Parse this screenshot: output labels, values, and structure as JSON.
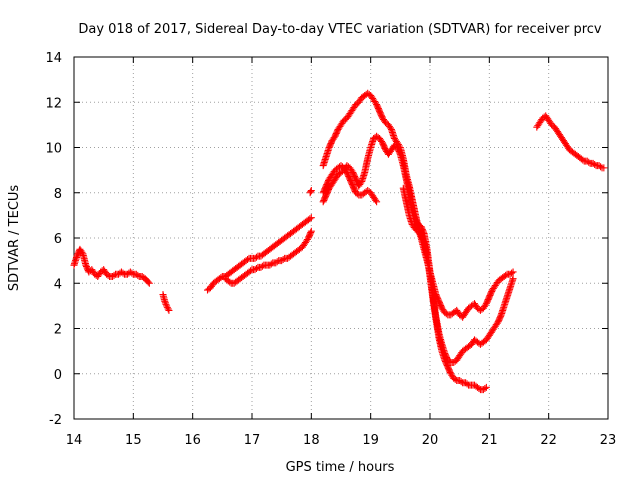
{
  "chart_data": {
    "type": "scatter",
    "title": "Day 018 of 2017, Sidereal Day-to-day VTEC variation (SDTVAR) for receiver prcv",
    "xlabel": "GPS time / hours",
    "ylabel": "SDTVAR / TECUs",
    "xlim": [
      14,
      23
    ],
    "ylim": [
      -2,
      14
    ],
    "xticks": [
      "14",
      "15",
      "16",
      "17",
      "18",
      "19",
      "20",
      "21",
      "22",
      "23"
    ],
    "yticks": [
      "-2",
      "0",
      "2",
      "4",
      "6",
      "8",
      "10",
      "12",
      "14"
    ],
    "grid": true,
    "marker": "+",
    "color": "#ff0000",
    "series": [
      {
        "name": "segment-a",
        "x": [
          14.0,
          14.05,
          14.1,
          14.15,
          14.2,
          14.25,
          14.3,
          14.35,
          14.4,
          14.45,
          14.5,
          14.55,
          14.6,
          14.65,
          14.7,
          14.75,
          14.8,
          14.85,
          14.9,
          14.95,
          15.0,
          15.05,
          15.1,
          15.15,
          15.2,
          15.27
        ],
        "y": [
          4.8,
          5.2,
          5.5,
          5.3,
          4.8,
          4.5,
          4.6,
          4.4,
          4.3,
          4.5,
          4.6,
          4.4,
          4.3,
          4.3,
          4.4,
          4.4,
          4.5,
          4.4,
          4.4,
          4.5,
          4.4,
          4.4,
          4.3,
          4.3,
          4.2,
          4.0
        ]
      },
      {
        "name": "segment-b",
        "x": [
          15.5,
          15.53,
          15.56,
          15.6
        ],
        "y": [
          3.5,
          3.2,
          3.0,
          2.8
        ]
      },
      {
        "name": "segment-c",
        "x": [
          16.25,
          16.3,
          16.35,
          16.4,
          16.45,
          16.5,
          16.55,
          16.6,
          16.65,
          16.7,
          16.75,
          16.8,
          16.85,
          16.9,
          16.95,
          17.0,
          17.05,
          17.1,
          17.15,
          17.2,
          17.25,
          17.3,
          17.35,
          17.4,
          17.45,
          17.5,
          17.55,
          17.6,
          17.65,
          17.7,
          17.75,
          17.8,
          17.85,
          17.9,
          17.95,
          18.0
        ],
        "y": [
          3.7,
          3.8,
          4.0,
          4.1,
          4.2,
          4.3,
          4.3,
          4.4,
          4.5,
          4.6,
          4.7,
          4.8,
          4.9,
          5.0,
          5.1,
          5.1,
          5.1,
          5.2,
          5.2,
          5.3,
          5.4,
          5.5,
          5.6,
          5.7,
          5.8,
          5.9,
          6.0,
          6.1,
          6.2,
          6.3,
          6.4,
          6.5,
          6.6,
          6.7,
          6.8,
          6.9
        ]
      },
      {
        "name": "segment-d",
        "x": [
          16.55,
          16.6,
          16.65,
          16.7,
          16.75,
          16.8,
          16.85,
          16.9,
          16.95,
          17.0,
          17.05,
          17.1,
          17.15,
          17.2,
          17.25,
          17.3,
          17.35,
          17.4,
          17.45,
          17.5,
          17.55,
          17.6,
          17.65,
          17.7,
          17.75,
          17.8,
          17.85,
          17.9,
          17.95,
          18.0
        ],
        "y": [
          4.2,
          4.1,
          4.0,
          4.0,
          4.1,
          4.2,
          4.3,
          4.4,
          4.5,
          4.6,
          4.6,
          4.7,
          4.7,
          4.8,
          4.8,
          4.8,
          4.9,
          4.9,
          5.0,
          5.0,
          5.1,
          5.1,
          5.2,
          5.3,
          5.4,
          5.5,
          5.6,
          5.8,
          6.0,
          6.3
        ]
      },
      {
        "name": "segment-e",
        "x": [
          17.98,
          18.0
        ],
        "y": [
          8.0,
          8.1
        ]
      },
      {
        "name": "segment-f",
        "x": [
          18.2,
          18.25,
          18.3,
          18.35,
          18.4,
          18.45,
          18.5,
          18.55,
          18.6,
          18.65,
          18.7,
          18.75,
          18.8,
          18.85,
          18.9,
          18.95,
          19.0,
          19.05,
          19.1,
          19.15,
          19.2,
          19.25,
          19.3,
          19.35,
          19.4,
          19.45,
          19.5,
          19.55,
          19.6,
          19.65,
          19.7,
          19.75,
          19.8,
          19.85,
          19.9,
          19.95,
          20.0,
          20.05,
          20.1,
          20.15,
          20.2,
          20.25,
          20.3,
          20.35,
          20.4,
          20.45,
          20.5,
          20.55,
          20.6,
          20.65,
          20.7,
          20.75,
          20.8,
          20.85,
          20.9,
          20.95,
          21.0,
          21.05,
          21.1,
          21.15,
          21.2,
          21.25,
          21.3,
          21.35,
          21.4
        ],
        "y": [
          9.2,
          9.6,
          10.0,
          10.3,
          10.5,
          10.8,
          11.0,
          11.2,
          11.3,
          11.5,
          11.7,
          11.9,
          12.0,
          12.2,
          12.3,
          12.4,
          12.3,
          12.1,
          11.9,
          11.6,
          11.3,
          11.1,
          11.0,
          10.8,
          10.4,
          10.2,
          10.0,
          9.5,
          8.8,
          8.3,
          7.7,
          7.1,
          6.5,
          6.0,
          5.5,
          5.0,
          4.5,
          4.0,
          3.5,
          3.2,
          2.9,
          2.7,
          2.6,
          2.6,
          2.7,
          2.8,
          2.6,
          2.5,
          2.7,
          2.9,
          3.0,
          3.1,
          2.9,
          2.8,
          2.9,
          3.1,
          3.4,
          3.7,
          3.9,
          4.1,
          4.2,
          4.3,
          4.4,
          4.4,
          4.5
        ]
      },
      {
        "name": "segment-g",
        "x": [
          18.2,
          18.25,
          18.3,
          18.35,
          18.4,
          18.45,
          18.5,
          18.55,
          18.6,
          18.65,
          18.7,
          18.75,
          18.8,
          18.85,
          18.9,
          18.95,
          19.0,
          19.05,
          19.1,
          19.15,
          19.2,
          19.25,
          19.3,
          19.35,
          19.4,
          19.45,
          19.5,
          19.55,
          19.6,
          19.65,
          19.7,
          19.75,
          19.8,
          19.85,
          19.9,
          19.95,
          20.0,
          20.05,
          20.1,
          20.15,
          20.2,
          20.25,
          20.3,
          20.35,
          20.4,
          20.45,
          20.5,
          20.55,
          20.6,
          20.65,
          20.7,
          20.75,
          20.8,
          20.85,
          20.9,
          20.95,
          21.0,
          21.05,
          21.1,
          21.15,
          21.2,
          21.25,
          21.3,
          21.35,
          21.4
        ],
        "y": [
          7.6,
          7.9,
          8.2,
          8.4,
          8.6,
          8.8,
          8.9,
          9.0,
          9.2,
          9.1,
          8.9,
          8.6,
          8.3,
          8.5,
          8.9,
          9.5,
          10.0,
          10.4,
          10.5,
          10.4,
          10.2,
          9.9,
          9.7,
          9.9,
          10.1,
          10.0,
          9.7,
          9.2,
          8.6,
          8.0,
          7.2,
          6.8,
          6.6,
          6.5,
          6.2,
          5.5,
          4.5,
          3.4,
          2.5,
          1.8,
          1.3,
          0.9,
          0.6,
          0.5,
          0.5,
          0.6,
          0.8,
          1.0,
          1.1,
          1.2,
          1.3,
          1.5,
          1.4,
          1.3,
          1.4,
          1.5,
          1.7,
          1.9,
          2.1,
          2.3,
          2.6,
          3.0,
          3.4,
          3.8,
          4.2
        ]
      },
      {
        "name": "segment-h",
        "x": [
          18.2,
          18.25,
          18.3,
          18.35,
          18.4,
          18.45,
          18.5,
          18.55,
          18.6,
          18.65,
          18.7,
          18.75,
          18.8,
          18.85,
          18.9,
          18.95,
          19.0,
          19.05,
          19.1
        ],
        "y": [
          8.0,
          8.3,
          8.6,
          8.8,
          9.0,
          9.1,
          9.2,
          9.1,
          8.9,
          8.6,
          8.3,
          8.0,
          7.9,
          7.9,
          8.0,
          8.1,
          8.0,
          7.8,
          7.6
        ]
      },
      {
        "name": "segment-i",
        "x": [
          19.55,
          19.6,
          19.65,
          19.7,
          19.75,
          19.8,
          19.85,
          19.9,
          19.95,
          20.0,
          20.05,
          20.1,
          20.15,
          20.2,
          20.25,
          20.3,
          20.35,
          20.4,
          20.45,
          20.5,
          20.55,
          20.6,
          20.65,
          20.7,
          20.75,
          20.8,
          20.85,
          20.9,
          20.95
        ],
        "y": [
          8.2,
          7.6,
          7.0,
          6.6,
          6.4,
          6.3,
          6.1,
          5.8,
          5.2,
          4.3,
          3.3,
          2.4,
          1.6,
          1.0,
          0.6,
          0.3,
          0.0,
          -0.2,
          -0.3,
          -0.3,
          -0.4,
          -0.4,
          -0.5,
          -0.5,
          -0.5,
          -0.6,
          -0.7,
          -0.7,
          -0.6
        ]
      },
      {
        "name": "segment-j",
        "x": [
          21.8,
          21.85,
          21.9,
          21.95,
          22.0,
          22.05,
          22.1,
          22.15,
          22.2,
          22.25,
          22.3,
          22.35,
          22.4,
          22.45,
          22.5,
          22.55,
          22.6,
          22.65,
          22.7,
          22.75,
          22.8,
          22.85,
          22.9,
          22.93
        ],
        "y": [
          10.9,
          11.1,
          11.3,
          11.4,
          11.2,
          11.0,
          10.9,
          10.7,
          10.5,
          10.3,
          10.1,
          9.9,
          9.8,
          9.7,
          9.6,
          9.5,
          9.4,
          9.4,
          9.3,
          9.3,
          9.2,
          9.2,
          9.1,
          9.1
        ]
      }
    ]
  }
}
